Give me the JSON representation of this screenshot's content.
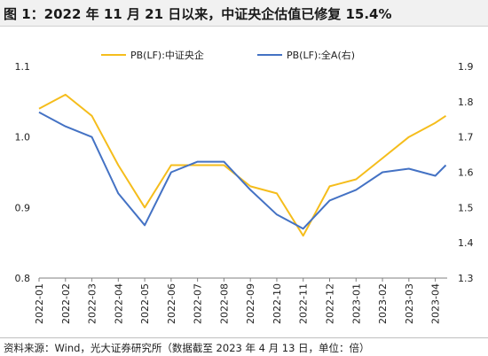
{
  "title": "图 1：2022 年 11 月 21 日以来，中证央企估值已修复 15.4%",
  "source": "资料来源：Wind，光大证券研究所（数据截至 2023 年 4 月 13 日，单位：倍）",
  "colors": {
    "series_a": "#f5bd1c",
    "series_b": "#4472c4",
    "axis": "#7f7f7f"
  },
  "chart_data": {
    "type": "line",
    "x_tick_labels": [
      "2022-01",
      "2022-02",
      "2022-03",
      "2022-04",
      "2022-05",
      "2022-06",
      "2022-07",
      "2022-08",
      "2022-09",
      "2022-10",
      "2022-11",
      "2022-12",
      "2023-01",
      "2023-02",
      "2023-03",
      "2023-04"
    ],
    "x": [
      "2022-01",
      "2022-02",
      "2022-03",
      "2022-04",
      "2022-05",
      "2022-06",
      "2022-07",
      "2022-08",
      "2022-09",
      "2022-10",
      "2022-11",
      "2022-12",
      "2023-01",
      "2023-02",
      "2023-03",
      "2023-04",
      "2023-04-13"
    ],
    "left_axis": {
      "ylim": [
        0.8,
        1.1
      ],
      "ticks": [
        "0.8",
        "0.9",
        "1.0",
        "1.1"
      ]
    },
    "right_axis": {
      "ylim": [
        1.3,
        1.9
      ],
      "ticks": [
        "1.3",
        "1.4",
        "1.5",
        "1.6",
        "1.7",
        "1.8",
        "1.9"
      ]
    },
    "legend_position": "top",
    "series": [
      {
        "name": "PB(LF):中证央企",
        "axis": "left",
        "values": [
          1.04,
          1.06,
          1.03,
          0.96,
          0.9,
          0.96,
          0.96,
          0.96,
          0.93,
          0.92,
          0.86,
          0.93,
          0.94,
          0.97,
          1.0,
          1.02,
          1.03
        ]
      },
      {
        "name": "PB(LF):全A(右)",
        "axis": "right",
        "values": [
          1.77,
          1.73,
          1.7,
          1.54,
          1.45,
          1.6,
          1.63,
          1.63,
          1.55,
          1.48,
          1.44,
          1.52,
          1.55,
          1.6,
          1.61,
          1.59,
          1.62
        ]
      }
    ]
  }
}
